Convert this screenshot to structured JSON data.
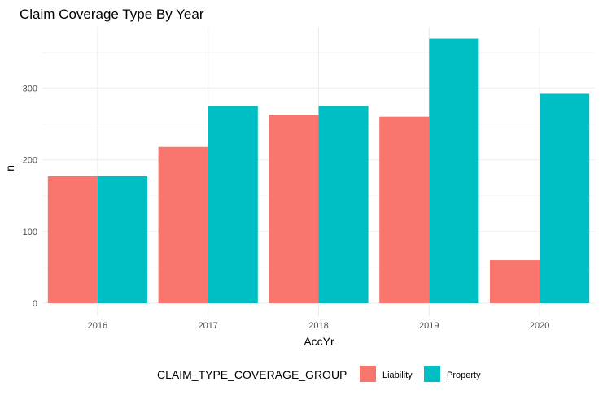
{
  "chart_data": {
    "type": "bar",
    "title": "Claim Coverage Type By Year",
    "xlabel": "AccYr",
    "ylabel": "n",
    "categories": [
      "2016",
      "2017",
      "2018",
      "2019",
      "2020"
    ],
    "series": [
      {
        "name": "Liability",
        "color": "#F8766D",
        "values": [
          177,
          218,
          263,
          260,
          60
        ]
      },
      {
        "name": "Property",
        "color": "#00BFC4",
        "values": [
          177,
          275,
          275,
          369,
          292
        ]
      }
    ],
    "ylim": [
      0,
      375
    ],
    "yticks": [
      0,
      100,
      200,
      300
    ],
    "grid": true,
    "legend": {
      "title": "CLAIM_TYPE_COVERAGE_GROUP",
      "position": "bottom"
    }
  }
}
